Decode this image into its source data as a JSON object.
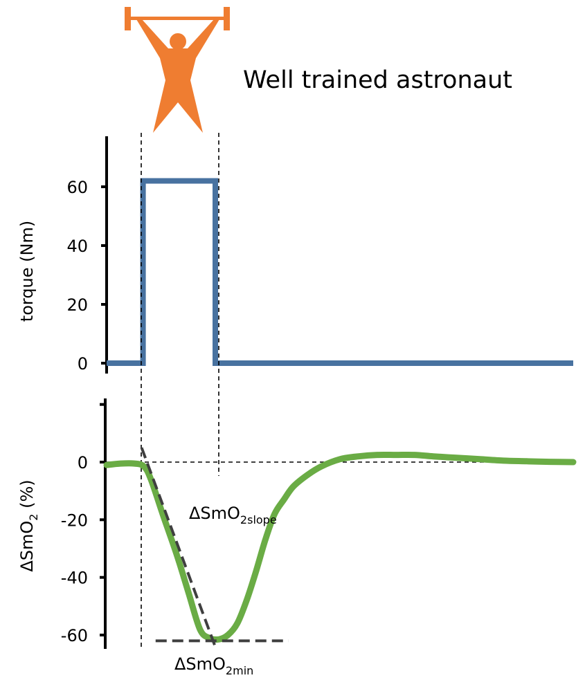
{
  "title": "Well trained astronaut",
  "colors": {
    "torque": "#4872a0",
    "smo2": "#6aac45",
    "icon": "#ef7d31",
    "fit_line": "#3f3f3f"
  },
  "icon": "weightlifter-icon",
  "chart_data": [
    {
      "type": "line",
      "ylabel": "torque (Nm)",
      "yticks": [
        "0",
        "20",
        "40",
        "60"
      ],
      "ylim": [
        0,
        80
      ],
      "xlim": [
        0,
        100
      ],
      "x": [
        0,
        7.8,
        7.8,
        23.3,
        23.3,
        100
      ],
      "series": [
        {
          "color": "#4872a0",
          "values": [
            0,
            0,
            62,
            62,
            0,
            0
          ]
        }
      ],
      "grid": false
    },
    {
      "type": "line",
      "ylabel_base": "ΔSmO",
      "ylabel_sub": "2",
      "ylabel_suffix": "  (%)",
      "yticks": [
        "0",
        "-20",
        "-40",
        "-60"
      ],
      "ylim": [
        -65,
        22
      ],
      "xlim": [
        0,
        100
      ],
      "x": [
        0,
        3,
        6,
        8,
        9.5,
        12,
        15,
        17.5,
        20,
        22,
        24,
        26,
        28,
        30,
        32,
        34,
        36,
        38,
        40,
        43,
        46,
        50,
        54,
        58,
        62,
        66,
        70,
        75,
        80,
        85,
        90,
        95,
        100
      ],
      "series": [
        {
          "color": "#6aac45",
          "values": [
            -1,
            -0.5,
            -0.5,
            -1.5,
            -6,
            -18,
            -32,
            -45,
            -58,
            -61,
            -61.5,
            -60,
            -56,
            -48,
            -38,
            -27,
            -18,
            -13,
            -8.5,
            -4.5,
            -1.5,
            1,
            2,
            2.5,
            2.5,
            2.5,
            2,
            1.5,
            1,
            0.5,
            0.3,
            0.1,
            0
          ]
        }
      ],
      "reference_lines": [
        {
          "name": "zero",
          "y": 0,
          "x_range": [
            0,
            100
          ]
        },
        {
          "name": "min",
          "y": -62,
          "x_range": [
            10.5,
            39
          ]
        },
        {
          "name": "slope",
          "x_range": [
            7.5,
            23.5
          ],
          "y_range": [
            5,
            -65
          ]
        }
      ],
      "annotations": [
        {
          "name": "slope-label",
          "base": "ΔSmO",
          "sub": "2slope"
        },
        {
          "name": "min-label",
          "base": "ΔSmO",
          "sub": "2min"
        }
      ],
      "grid": false
    }
  ]
}
